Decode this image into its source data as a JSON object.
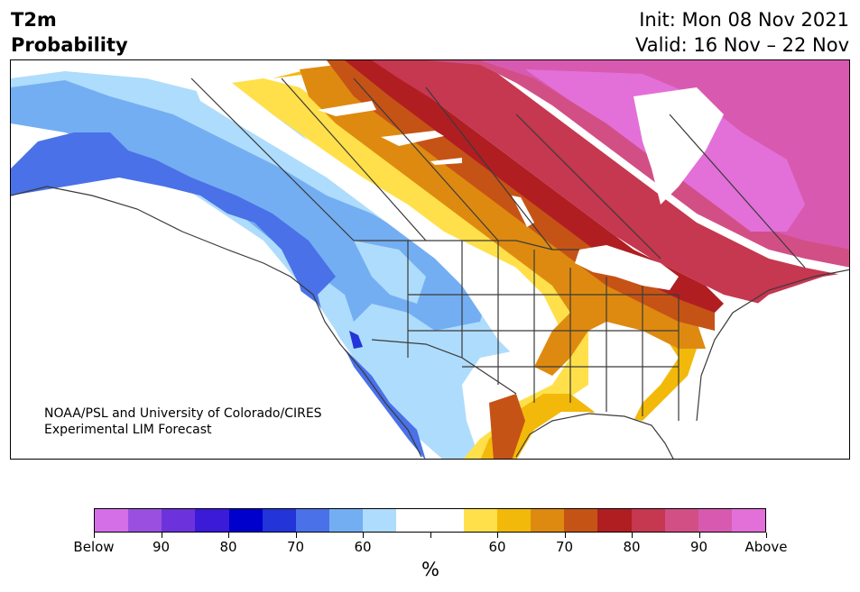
{
  "title": {
    "line1": "T2m",
    "line2": "Probability"
  },
  "subtitle": {
    "init": "Init: Mon 08 Nov 2021",
    "valid": "Valid: 16 Nov – 22 Nov"
  },
  "credit": {
    "line1": "NOAA/PSL and University of Colorado/CIRES",
    "line2": "Experimental LIM Forecast"
  },
  "colorbar": {
    "unit": "%",
    "colors": [
      "#d56fe8",
      "#9b4fe0",
      "#6c33dc",
      "#3b1ad8",
      "#0000cc",
      "#2334d9",
      "#4a71e8",
      "#74aef2",
      "#aedcfc",
      "#ffffff",
      "#ffffff",
      "#ffe04a",
      "#f2b90a",
      "#de8a10",
      "#c65316",
      "#b01e22",
      "#c63750",
      "#d24f86",
      "#d85ab0",
      "#e270d8"
    ],
    "tick_labels": [
      "Below",
      "90",
      "80",
      "70",
      "60",
      "",
      "60",
      "70",
      "80",
      "90",
      "Above"
    ]
  },
  "map": {
    "region": "North America",
    "colors": {
      "blue_light": "#aedcfc",
      "blue_mid": "#74aef2",
      "blue_dark": "#4a71e8",
      "blue_deep": "#2334d9",
      "yellow": "#ffe04a",
      "gold": "#f2b90a",
      "orange": "#de8a10",
      "rust": "#c65316",
      "red": "#b01e22",
      "crimson": "#c63750",
      "rose": "#d24f86",
      "magenta": "#d85ab0",
      "pink": "#e270d8"
    }
  }
}
